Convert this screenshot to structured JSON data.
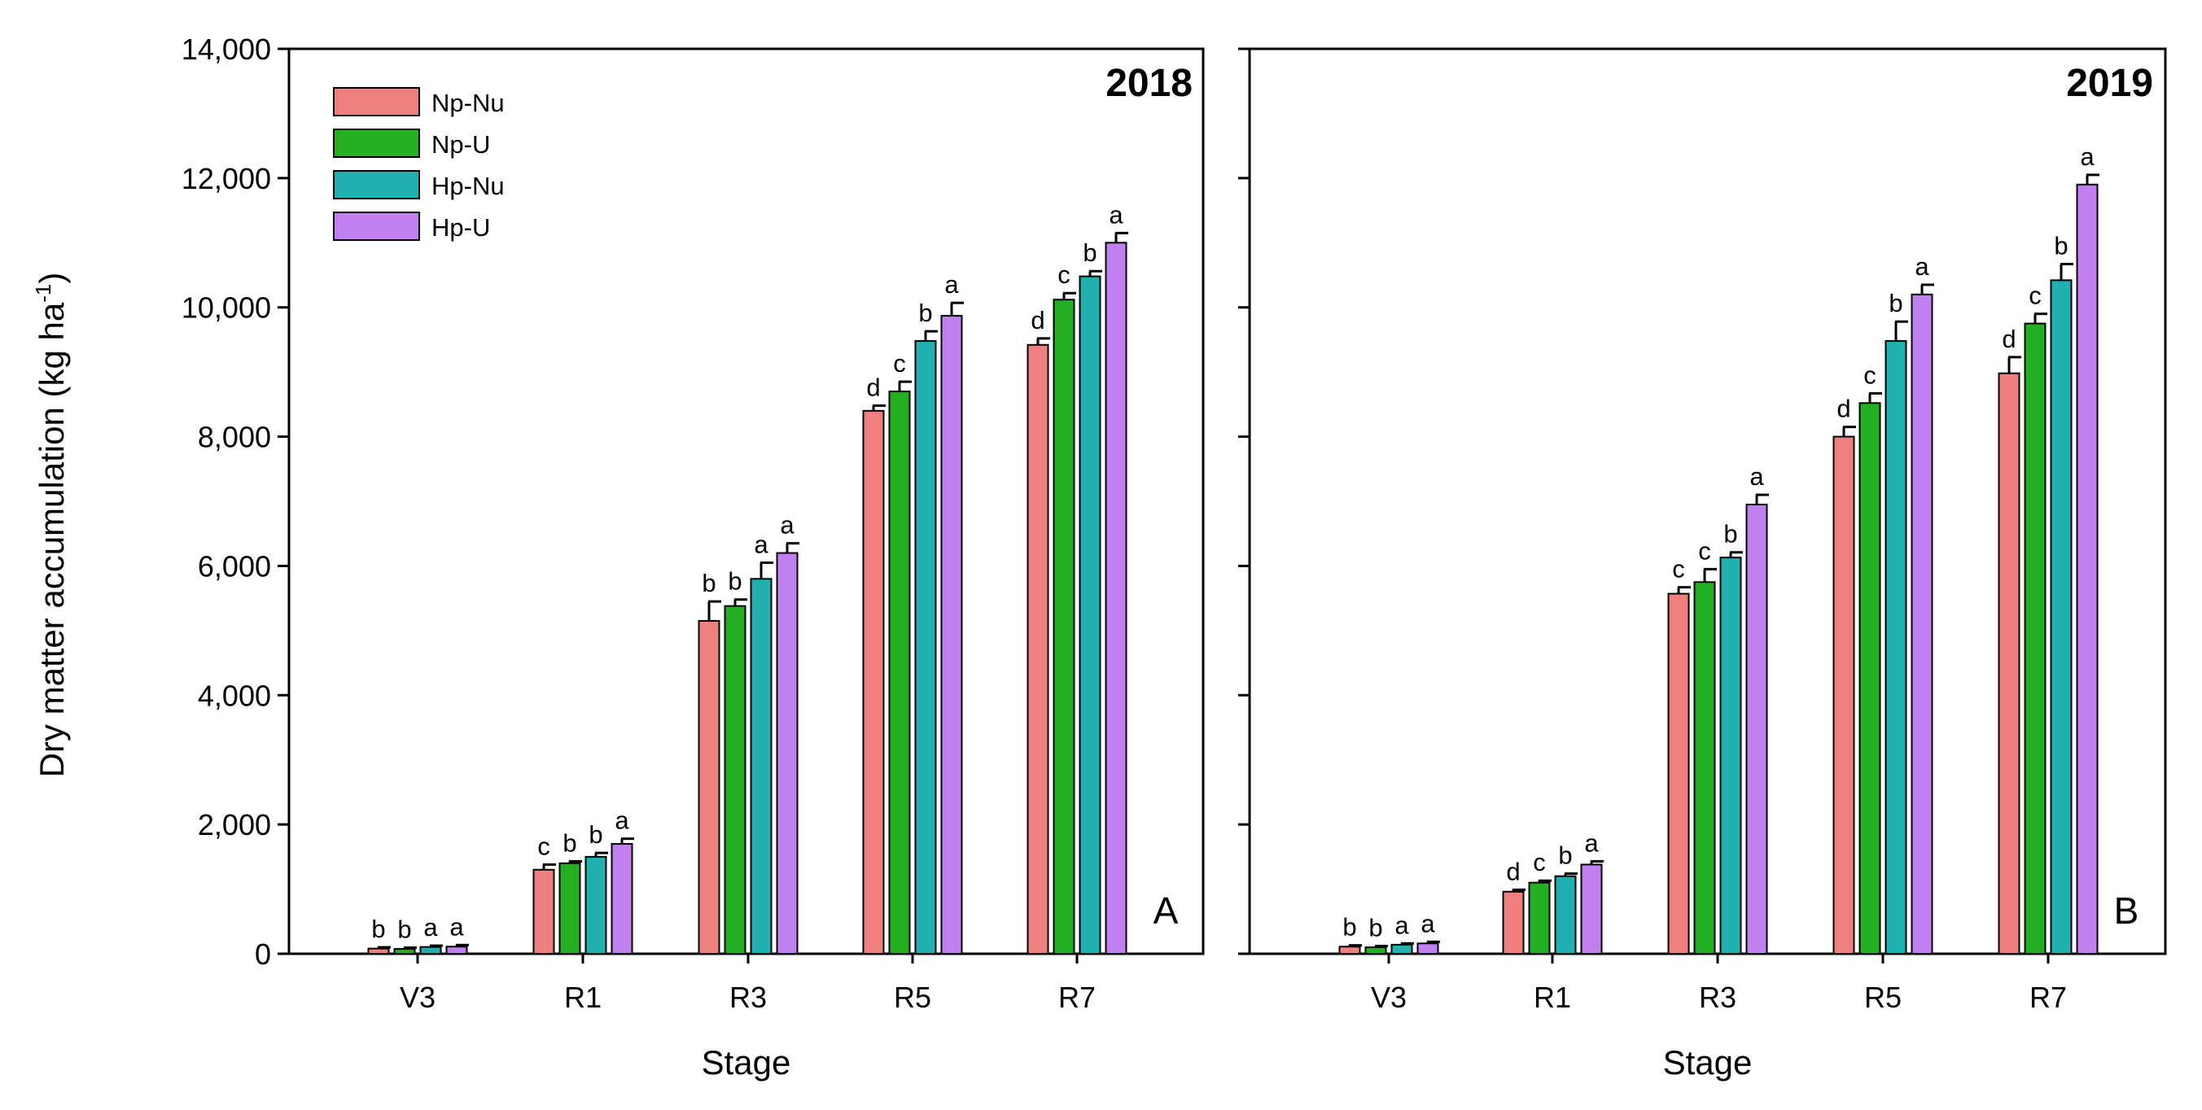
{
  "figure": {
    "ylabel_main": "Dry matter accumulation  (kg ha",
    "ylabel_sup": "-1",
    "ylabel_close": ")"
  },
  "colors": {
    "Np-Nu": "#f08080",
    "Np-U": "#22b022",
    "Hp-Nu": "#20b0b0",
    "Hp-U": "#c080f0"
  },
  "chart_data": [
    {
      "type": "bar",
      "title": "2018",
      "panel_label": "A",
      "xlabel": "Stage",
      "ylabel": "Dry matter accumulation (kg ha-1)",
      "ylim": [
        0,
        14000
      ],
      "yticks": [
        0,
        2000,
        4000,
        6000,
        8000,
        10000,
        12000,
        14000
      ],
      "ytick_labels": [
        "0",
        "2,000",
        "4,000",
        "6,000",
        "8,000",
        "10,000",
        "12,000",
        "14,000"
      ],
      "categories": [
        "V3",
        "R1",
        "R3",
        "R5",
        "R7"
      ],
      "legend": [
        "Np-Nu",
        "Np-U",
        "Hp-Nu",
        "Hp-U"
      ],
      "series": [
        {
          "name": "Np-Nu",
          "values": [
            80,
            1300,
            5150,
            8400,
            9420
          ],
          "errors": [
            20,
            80,
            300,
            80,
            100
          ],
          "letters": [
            "b",
            "c",
            "b",
            "d",
            "d"
          ]
        },
        {
          "name": "Np-U",
          "values": [
            75,
            1400,
            5380,
            8700,
            10120
          ],
          "errors": [
            20,
            30,
            100,
            150,
            100
          ],
          "letters": [
            "b",
            "b",
            "b",
            "c",
            "c"
          ]
        },
        {
          "name": "Hp-Nu",
          "values": [
            105,
            1500,
            5800,
            9480,
            10480
          ],
          "errors": [
            20,
            60,
            250,
            150,
            80
          ],
          "letters": [
            "a",
            "b",
            "a",
            "b",
            "b"
          ]
        },
        {
          "name": "Hp-U",
          "values": [
            110,
            1700,
            6200,
            9870,
            11000
          ],
          "errors": [
            25,
            80,
            150,
            200,
            150
          ],
          "letters": [
            "a",
            "a",
            "a",
            "a",
            "a"
          ]
        }
      ]
    },
    {
      "type": "bar",
      "title": "2019",
      "panel_label": "B",
      "xlabel": "Stage",
      "ylabel": "Dry matter accumulation (kg ha-1)",
      "ylim": [
        0,
        14000
      ],
      "yticks": [
        0,
        2000,
        4000,
        6000,
        8000,
        10000,
        12000,
        14000
      ],
      "categories": [
        "V3",
        "R1",
        "R3",
        "R5",
        "R7"
      ],
      "legend": [
        "Np-Nu",
        "Np-U",
        "Hp-Nu",
        "Hp-U"
      ],
      "series": [
        {
          "name": "Np-Nu",
          "values": [
            110,
            960,
            5570,
            8000,
            8980
          ],
          "errors": [
            20,
            30,
            100,
            150,
            250
          ],
          "letters": [
            "b",
            "d",
            "c",
            "d",
            "d"
          ]
        },
        {
          "name": "Np-U",
          "values": [
            100,
            1100,
            5750,
            8520,
            9750
          ],
          "errors": [
            20,
            30,
            200,
            150,
            150
          ],
          "letters": [
            "b",
            "c",
            "c",
            "c",
            "c"
          ]
        },
        {
          "name": "Hp-Nu",
          "values": [
            140,
            1200,
            6130,
            9480,
            10420
          ],
          "errors": [
            20,
            40,
            80,
            300,
            250
          ],
          "letters": [
            "a",
            "b",
            "b",
            "b",
            "b"
          ]
        },
        {
          "name": "Hp-U",
          "values": [
            160,
            1380,
            6950,
            10200,
            11900
          ],
          "errors": [
            25,
            50,
            150,
            150,
            150
          ],
          "letters": [
            "a",
            "a",
            "a",
            "a",
            "a"
          ]
        }
      ]
    }
  ]
}
